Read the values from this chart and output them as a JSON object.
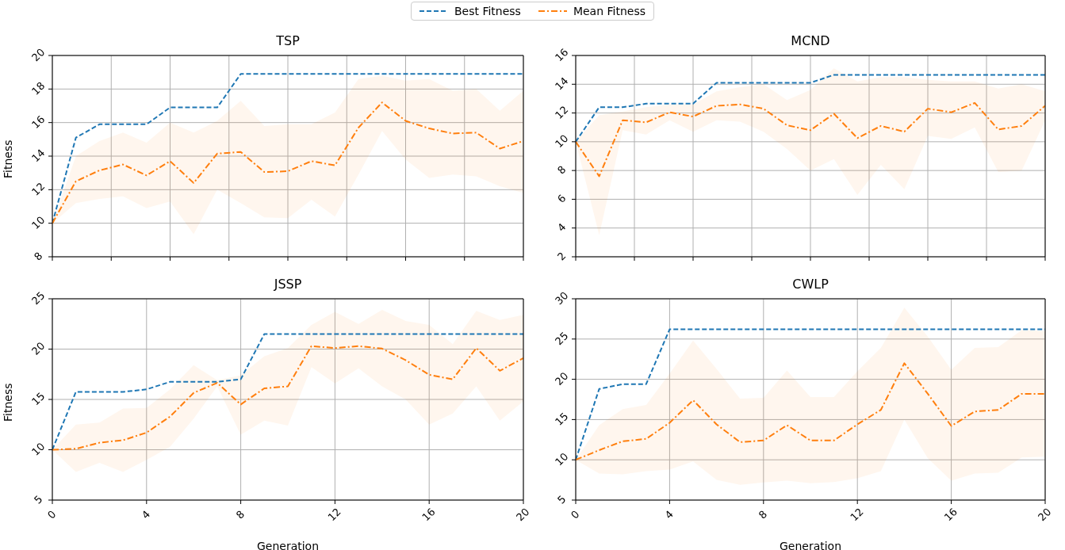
{
  "chart_data": [
    {
      "type": "line",
      "title": "TSP",
      "ylabel": "Fitness",
      "legend": "top",
      "grid": true,
      "tick_labels": "y",
      "x": [
        0,
        1,
        2,
        3,
        4,
        5,
        6,
        7,
        8,
        9,
        10,
        11,
        12,
        13,
        14,
        15,
        16,
        17,
        18,
        19,
        20
      ],
      "xlim": [
        0,
        20
      ],
      "xticks": [
        0,
        {
          "value": 2.5,
          "label": null
        },
        {
          "value": 5,
          "label": null
        },
        {
          "value": 7.5,
          "label": null
        },
        {
          "value": 10,
          "label": null
        },
        {
          "value": 12.5,
          "label": null
        },
        {
          "value": 15,
          "label": null
        },
        {
          "value": 17.5,
          "label": null
        },
        {
          "value": 20,
          "label": null
        }
      ],
      "ylim": [
        8,
        20
      ],
      "yticks": [
        8,
        10,
        12,
        14,
        16,
        18,
        20
      ],
      "series": [
        {
          "name": "Best Fitness",
          "color": "#1f77b4",
          "line_style": "dashed",
          "values": [
            10,
            15.1,
            15.9,
            15.9,
            15.9,
            16.9,
            16.9,
            16.9,
            18.9,
            18.9,
            18.9,
            18.9,
            18.9,
            18.9,
            18.9,
            18.9,
            18.9,
            18.9,
            18.9,
            18.9,
            18.9
          ]
        },
        {
          "name": "Mean Fitness",
          "color": "#ff7f0e",
          "line_style": "dashdot",
          "values": [
            10,
            12.5,
            13.15,
            13.5,
            12.85,
            13.7,
            12.4,
            14.15,
            14.25,
            13.05,
            13.1,
            13.7,
            13.45,
            15.7,
            17.2,
            16.1,
            15.65,
            15.35,
            15.4,
            14.45,
            14.9
          ],
          "lower": [
            10,
            11.2,
            11.45,
            11.6,
            10.9,
            11.3,
            9.35,
            12,
            11.2,
            10.35,
            10.3,
            11.4,
            10.4,
            12.9,
            15.5,
            13.8,
            12.7,
            12.9,
            12.8,
            12.2,
            11.8
          ],
          "upper": [
            10,
            14,
            14.9,
            15.4,
            14.8,
            16,
            15.4,
            16.1,
            17.3,
            15.8,
            15.9,
            15.9,
            16.6,
            18.6,
            18.8,
            18.5,
            18.6,
            17.9,
            18,
            16.7,
            17.9
          ]
        }
      ]
    },
    {
      "type": "line",
      "title": "MCND",
      "grid": true,
      "tick_labels": "y",
      "x": [
        0,
        1,
        2,
        3,
        4,
        5,
        6,
        7,
        8,
        9,
        10,
        11,
        12,
        13,
        14,
        15,
        16,
        17,
        18,
        19,
        20
      ],
      "xlim": [
        0,
        20
      ],
      "xticks": [
        0,
        {
          "value": 2.5,
          "label": null
        },
        {
          "value": 5,
          "label": null
        },
        {
          "value": 7.5,
          "label": null
        },
        {
          "value": 10,
          "label": null
        },
        {
          "value": 12.5,
          "label": null
        },
        {
          "value": 15,
          "label": null
        },
        {
          "value": 17.5,
          "label": null
        },
        {
          "value": 20,
          "label": null
        }
      ],
      "ylim": [
        2,
        16
      ],
      "yticks": [
        2,
        4,
        6,
        8,
        10,
        12,
        14,
        16
      ],
      "series": [
        {
          "color": "#1f77b4",
          "line_style": "dashed",
          "values": [
            10,
            12.4,
            12.4,
            12.65,
            12.65,
            12.65,
            14.1,
            14.1,
            14.1,
            14.1,
            14.1,
            14.65,
            14.65,
            14.65,
            14.65,
            14.65,
            14.65,
            14.65,
            14.65,
            14.65,
            14.65
          ]
        },
        {
          "color": "#ff7f0e",
          "line_style": "dashdot",
          "values": [
            10,
            7.6,
            11.5,
            11.35,
            12.05,
            11.75,
            12.5,
            12.6,
            12.3,
            11.15,
            10.8,
            11.95,
            10.25,
            11.1,
            10.7,
            12.3,
            12.05,
            12.7,
            10.85,
            11.1,
            12.5
          ],
          "lower": [
            10,
            3.5,
            10.8,
            10.5,
            11.5,
            10.7,
            11.5,
            11.4,
            10.7,
            9.5,
            8,
            8.8,
            6.3,
            8.4,
            6.7,
            10.4,
            10.2,
            11,
            7.9,
            8,
            11.5
          ],
          "upper": [
            10,
            11.85,
            12.1,
            12.4,
            12.6,
            12.6,
            13.5,
            13.8,
            14,
            12.9,
            13.6,
            15.1,
            14.2,
            14.5,
            14.5,
            14.3,
            14.2,
            14.2,
            13.7,
            14,
            13.5
          ]
        }
      ]
    },
    {
      "type": "line",
      "title": "JSSP",
      "xlabel": "Generation",
      "ylabel": "Fitness",
      "grid": true,
      "x": [
        0,
        1,
        2,
        3,
        4,
        5,
        6,
        7,
        8,
        9,
        10,
        11,
        12,
        13,
        14,
        15,
        16,
        17,
        18,
        19,
        20
      ],
      "xlim": [
        0,
        20
      ],
      "xticks": [
        0,
        4,
        8,
        12,
        16,
        20
      ],
      "ylim": [
        5,
        25
      ],
      "yticks": [
        5,
        10,
        15,
        20,
        25
      ],
      "series": [
        {
          "color": "#1f77b4",
          "line_style": "dashed",
          "values": [
            10,
            15.75,
            15.75,
            15.75,
            16,
            16.75,
            16.75,
            16.75,
            17,
            21.5,
            21.5,
            21.5,
            21.5,
            21.5,
            21.5,
            21.5,
            21.5,
            21.5,
            21.5,
            21.5,
            21.5
          ]
        },
        {
          "color": "#ff7f0e",
          "line_style": "dashdot",
          "values": [
            10,
            10.1,
            10.7,
            10.95,
            11.7,
            13.3,
            15.65,
            16.65,
            14.5,
            16.1,
            16.3,
            20.3,
            20.1,
            20.3,
            20.05,
            18.9,
            17.45,
            17,
            20.1,
            17.85,
            19.1
          ],
          "lower": [
            10,
            7.8,
            8.7,
            7.8,
            9,
            10.3,
            13.1,
            16.3,
            11.5,
            12.9,
            12.4,
            18.2,
            16.6,
            18.1,
            16.3,
            15,
            12.5,
            13.6,
            16.3,
            12.9,
            14.8
          ],
          "upper": [
            10,
            12.5,
            12.7,
            14.1,
            14.15,
            16,
            18.4,
            16.9,
            17.4,
            19.3,
            20.1,
            22.4,
            23.7,
            22.5,
            23.9,
            22.8,
            22.4,
            20.5,
            23.8,
            22.9,
            23.4
          ]
        }
      ]
    },
    {
      "type": "line",
      "title": "CWLP",
      "xlabel": "Generation",
      "grid": true,
      "x": [
        0,
        1,
        2,
        3,
        4,
        5,
        6,
        7,
        8,
        9,
        10,
        11,
        12,
        13,
        14,
        15,
        16,
        17,
        18,
        19,
        20
      ],
      "xlim": [
        0,
        20
      ],
      "xticks": [
        0,
        4,
        8,
        12,
        16,
        20
      ],
      "ylim": [
        5,
        30
      ],
      "yticks": [
        5,
        10,
        15,
        20,
        25,
        30
      ],
      "series": [
        {
          "color": "#1f77b4",
          "line_style": "dashed",
          "values": [
            10,
            18.8,
            19.4,
            19.4,
            26.2,
            26.2,
            26.2,
            26.2,
            26.2,
            26.2,
            26.2,
            26.2,
            26.2,
            26.2,
            26.2,
            26.2,
            26.2,
            26.2,
            26.2,
            26.2,
            26.2
          ]
        },
        {
          "color": "#ff7f0e",
          "line_style": "dashdot",
          "values": [
            10,
            11.2,
            12.3,
            12.6,
            14.6,
            17.4,
            14.4,
            12.2,
            12.4,
            14.3,
            12.4,
            12.4,
            14.4,
            16.2,
            22,
            18.2,
            14.2,
            16,
            16.2,
            18.2,
            18.2
          ],
          "lower": [
            10,
            8.3,
            8.2,
            8.6,
            8.8,
            9.8,
            7.5,
            6.9,
            7.2,
            7.4,
            7.1,
            7.25,
            7.7,
            8.6,
            15,
            10.2,
            7.4,
            8.3,
            8.4,
            10.3,
            10.4
          ],
          "upper": [
            10,
            14.3,
            16.3,
            16.8,
            20.7,
            24.8,
            21.3,
            17.6,
            17.7,
            21.1,
            17.8,
            17.8,
            21,
            23.9,
            28.9,
            25.3,
            21.2,
            23.9,
            24,
            26.1,
            26
          ]
        }
      ]
    }
  ]
}
